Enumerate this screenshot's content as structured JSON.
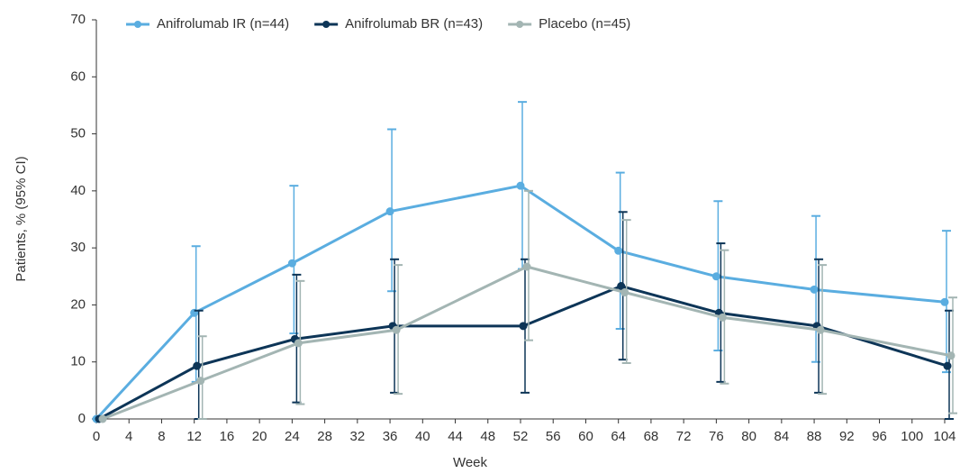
{
  "chart_data": {
    "type": "line",
    "x_label": "Week",
    "y_label": "Patients, % (95% CI)",
    "x": [
      0,
      12,
      24,
      36,
      52,
      64,
      76,
      88,
      104
    ],
    "xlim": [
      0,
      104
    ],
    "xticks": [
      0,
      4,
      8,
      12,
      16,
      20,
      24,
      28,
      32,
      36,
      40,
      44,
      48,
      52,
      56,
      60,
      64,
      68,
      72,
      76,
      80,
      84,
      88,
      92,
      96,
      100,
      104
    ],
    "ylim": [
      0,
      70
    ],
    "yticks": [
      0,
      10,
      20,
      30,
      40,
      50,
      60,
      70
    ],
    "legend": "top",
    "series": [
      {
        "name": "Anifrolumab IR (n=44)",
        "color": "#5aade0",
        "values": [
          0,
          18.6,
          27.3,
          36.4,
          40.9,
          29.5,
          25.0,
          22.7,
          20.5
        ],
        "ci_low": [
          null,
          6.5,
          15.0,
          22.4,
          26.3,
          15.8,
          12.0,
          10.0,
          8.2
        ],
        "ci_high": [
          null,
          30.3,
          40.9,
          50.8,
          55.6,
          43.2,
          38.2,
          35.6,
          33.0
        ]
      },
      {
        "name": "Anifrolumab BR (n=43)",
        "color": "#0d3557",
        "values": [
          0,
          9.3,
          14.0,
          16.3,
          16.3,
          23.3,
          18.6,
          16.3,
          9.3
        ],
        "ci_low": [
          null,
          0,
          2.9,
          4.6,
          4.6,
          10.4,
          6.5,
          4.6,
          0
        ],
        "ci_high": [
          null,
          19.0,
          25.3,
          28.0,
          28.0,
          36.3,
          30.8,
          28.0,
          19.0
        ]
      },
      {
        "name": "Placebo (n=45)",
        "color": "#a3b5b3",
        "values": [
          0,
          6.7,
          13.3,
          15.6,
          26.7,
          22.2,
          17.8,
          15.6,
          11.1
        ],
        "ci_low": [
          null,
          0,
          2.6,
          4.4,
          13.8,
          9.8,
          6.2,
          4.4,
          1.0
        ],
        "ci_high": [
          null,
          14.5,
          24.2,
          27.0,
          40.0,
          34.9,
          29.6,
          27.0,
          21.3
        ]
      }
    ]
  }
}
